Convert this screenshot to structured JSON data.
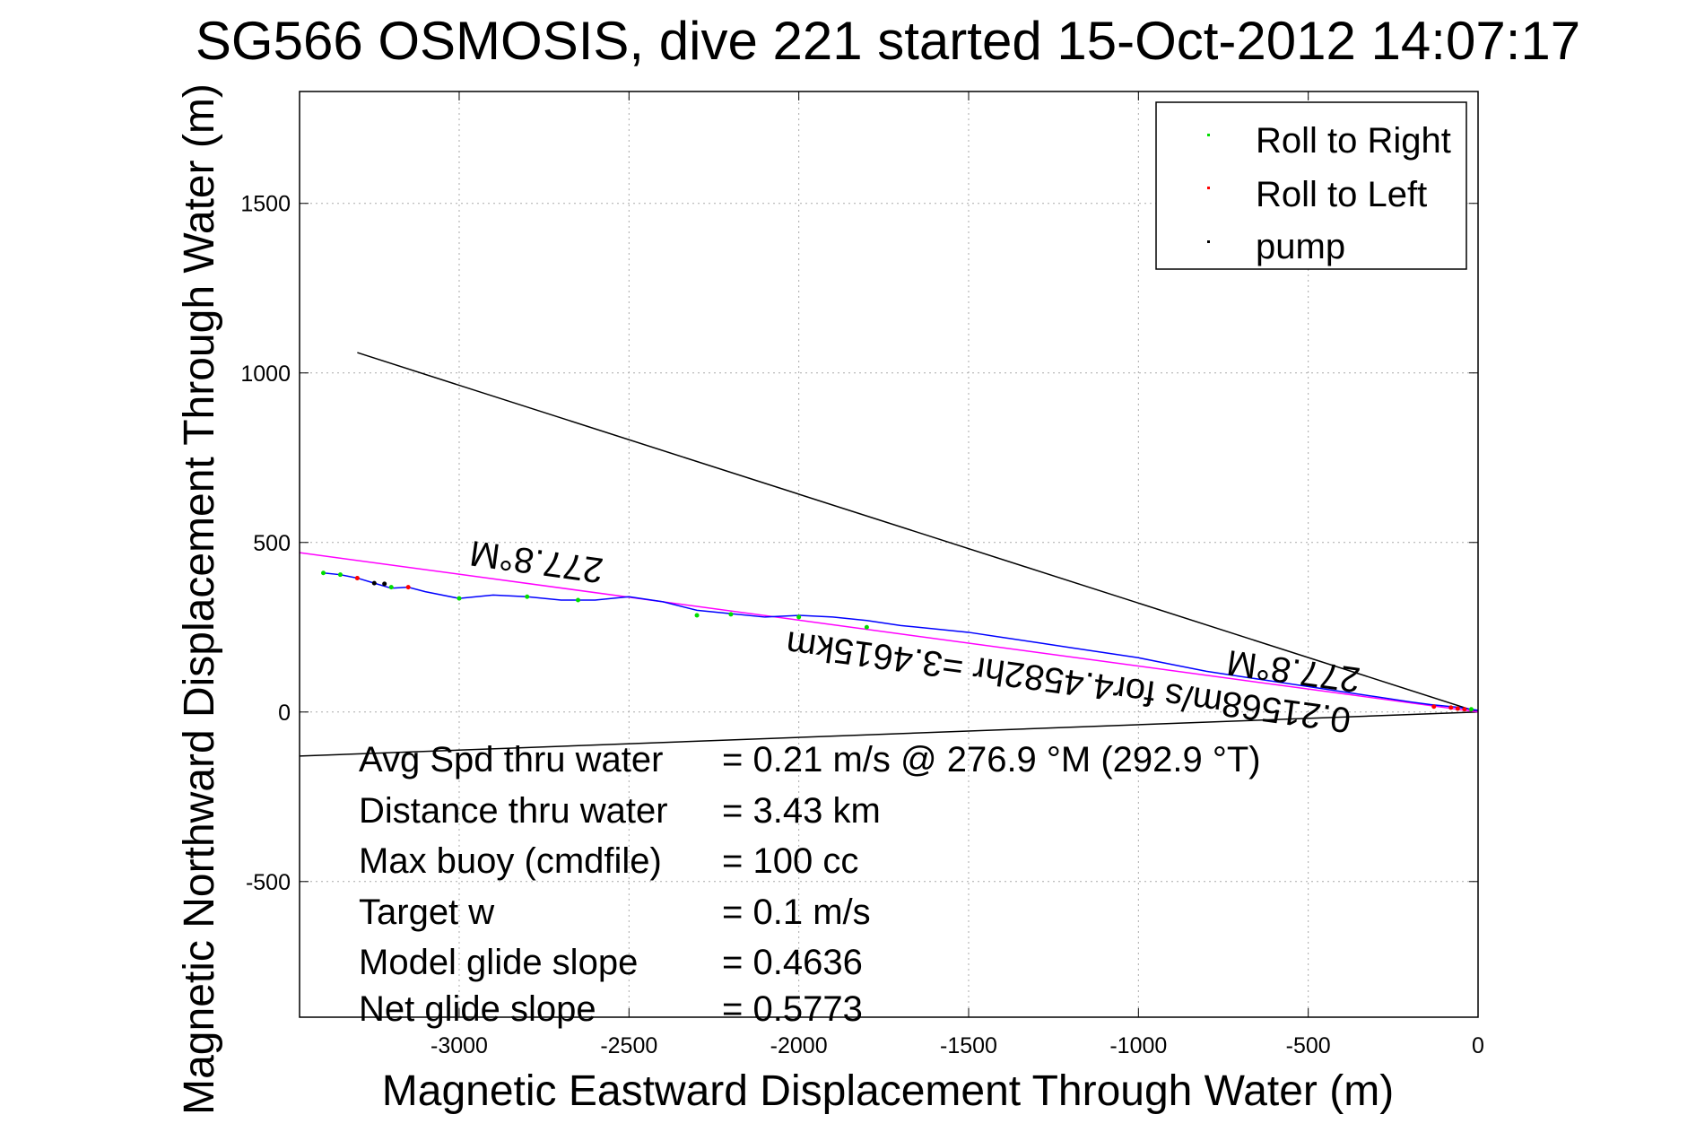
{
  "chart_data": {
    "type": "scatter",
    "title": "SG566 OSMOSIS, dive 221 started 15-Oct-2012 14:07:17",
    "xlabel": "Magnetic Eastward Displacement Through Water (m)",
    "ylabel": "Magnetic Northward Displacement Through Water (m)",
    "xlim": [
      -3470,
      0
    ],
    "ylim": [
      -900,
      1830
    ],
    "xticks": [
      -3000,
      -2500,
      -2000,
      -1500,
      -1000,
      -500,
      0
    ],
    "yticks": [
      -500,
      0,
      500,
      1000,
      1500
    ],
    "grid": true,
    "legend_position": "top-right",
    "legend": [
      {
        "label": "Roll to Right",
        "color": "#00dd00"
      },
      {
        "label": "Roll to Left",
        "color": "#ff0000"
      },
      {
        "label": "pump",
        "color": "#000000"
      }
    ],
    "track": {
      "color": "#0000ff",
      "x": [
        0,
        -20,
        -60,
        -100,
        -140,
        -200,
        -300,
        -400,
        -500,
        -600,
        -700,
        -800,
        -900,
        -1000,
        -1100,
        -1200,
        -1300,
        -1400,
        -1500,
        -1600,
        -1700,
        -1800,
        -1900,
        -2000,
        -2100,
        -2200,
        -2300,
        -2400,
        -2500,
        -2600,
        -2700,
        -2800,
        -2900,
        -3000,
        -3100,
        -3150,
        -3200,
        -3250,
        -3300,
        -3350,
        -3400
      ],
      "y": [
        5,
        8,
        14,
        18,
        22,
        30,
        45,
        60,
        75,
        90,
        105,
        120,
        140,
        160,
        175,
        190,
        205,
        220,
        235,
        245,
        255,
        270,
        280,
        285,
        280,
        290,
        300,
        325,
        340,
        330,
        330,
        340,
        345,
        335,
        355,
        368,
        365,
        380,
        395,
        405,
        410
      ]
    },
    "roll_right_points": {
      "x": [
        -3400,
        -3350,
        -3200,
        -3000,
        -2800,
        -2650,
        -2300,
        -2200,
        -2000,
        -1800,
        -20
      ],
      "y": [
        410,
        405,
        368,
        335,
        340,
        330,
        285,
        288,
        280,
        250,
        8
      ]
    },
    "roll_left_points": {
      "x": [
        -3300,
        -3150,
        -130,
        -80,
        -60,
        -40
      ],
      "y": [
        395,
        368,
        16,
        13,
        10,
        8
      ]
    },
    "pump_points": {
      "x": [
        -3250,
        -3220
      ],
      "y": [
        380,
        378
      ]
    },
    "lines": [
      {
        "name": "line-upper",
        "color": "#000000",
        "x": [
          0,
          -3300
        ],
        "y": [
          0,
          1060
        ]
      },
      {
        "name": "line-lower",
        "color": "#000000",
        "x": [
          0,
          -3470
        ],
        "y": [
          0,
          -130
        ]
      },
      {
        "name": "heading-line",
        "color": "#ff00ff",
        "x": [
          0,
          -3470
        ],
        "y": [
          0,
          470
        ]
      }
    ],
    "annotations": {
      "heading_label_left": "277.8°M",
      "heading_label_right": "277.8°M",
      "speed_label": "0.21568m/s for4.4582hr =3.4615km"
    },
    "stats": [
      {
        "label": "Avg Spd thru water",
        "value": "=  0.21 m/s @ 276.9 °M (292.9 °T)"
      },
      {
        "label": "Distance thru water",
        "value": "=  3.43 km"
      },
      {
        "label": "Max buoy (cmdfile)",
        "value": "= 100 cc"
      },
      {
        "label": "Target w",
        "value": "= 0.1 m/s"
      },
      {
        "label": "Model glide slope",
        "value": "= 0.4636"
      },
      {
        "label": "Net glide slope",
        "value": "= 0.5773"
      }
    ]
  }
}
